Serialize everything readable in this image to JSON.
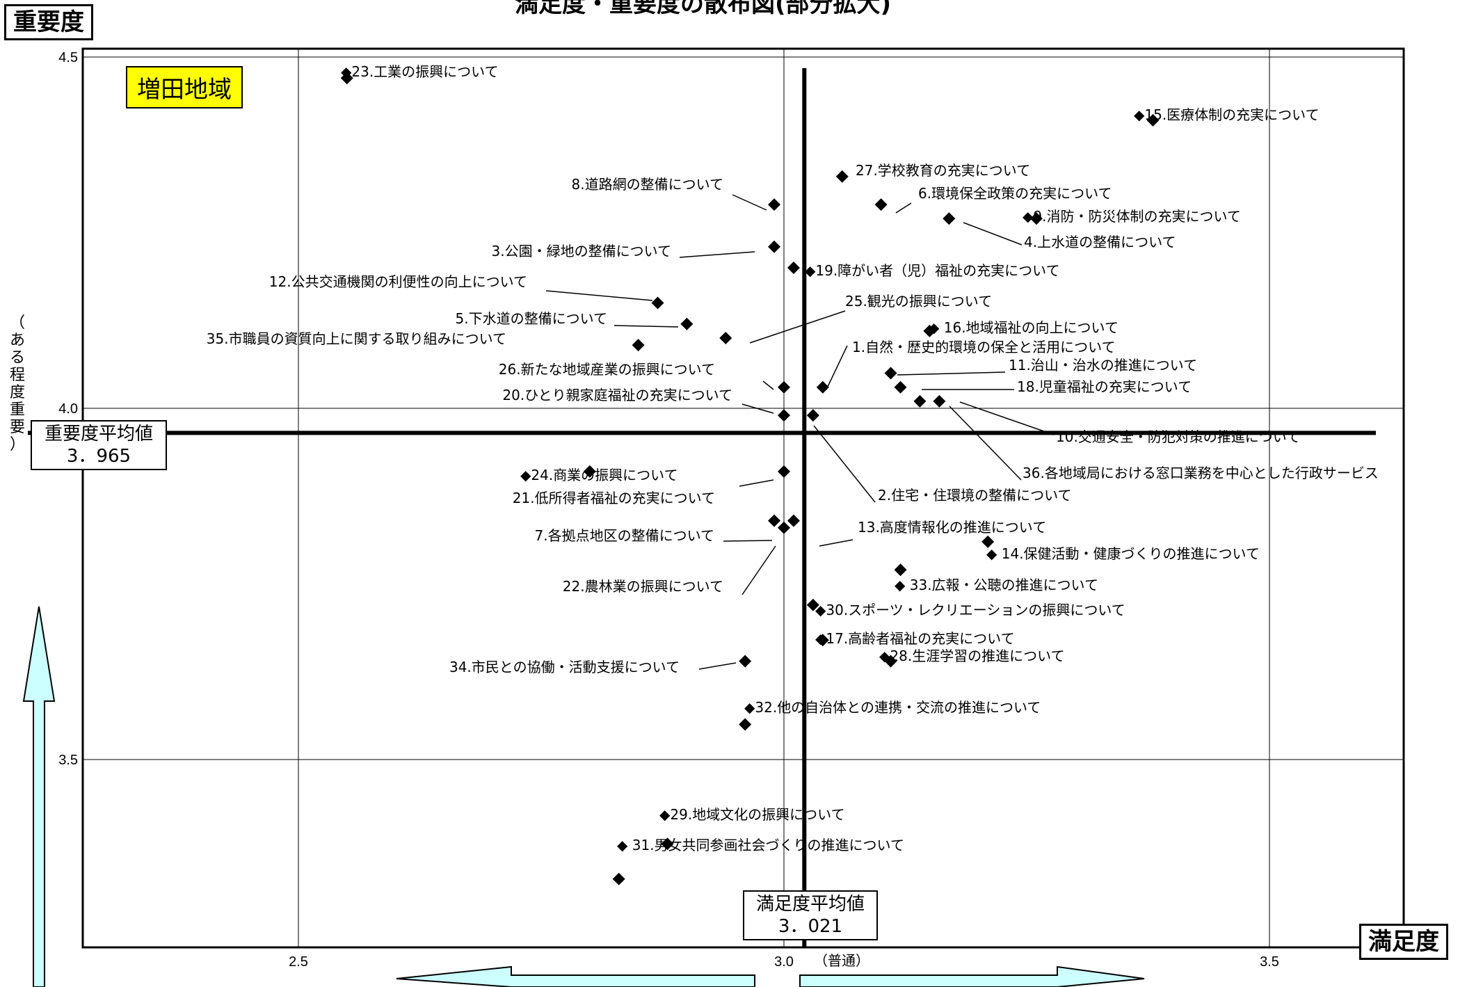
{
  "title": "満足度・重要度の散布図(部分拡大)",
  "region_label": "増田地域",
  "y_header": "重要度",
  "x_header": "満足度",
  "y_side_label": "（ある程度重要）",
  "x_normal_label": "（普通）",
  "avg_importance": {
    "label": "重要度平均値",
    "value": "3．965",
    "numeric": 3.965
  },
  "avg_satisfaction": {
    "label": "満足度平均値",
    "value": "3．021",
    "numeric": 3.021
  },
  "colors": {
    "arrow_fill": "#ccffff",
    "region_bg": "#ffff00",
    "marker": "#000000"
  },
  "chart_data": {
    "type": "scatter",
    "xlim": [
      2.28,
      3.64
    ],
    "ylim": [
      3.18,
      4.5
    ],
    "x_ticks": [
      "2.5",
      "3.0",
      "3.5"
    ],
    "y_ticks": [
      "4.5",
      "4.0",
      "3.5"
    ],
    "grid": true,
    "points": [
      {
        "label": "◆23.工業の振興について",
        "x": 2.55,
        "y": 4.47
      },
      {
        "label": "◆15.医療体制の充実について",
        "x": 3.38,
        "y": 4.41
      },
      {
        "label": "27.学校教育の充実について",
        "x": 3.06,
        "y": 4.33
      },
      {
        "label": "8.道路網の整備について",
        "x": 2.99,
        "y": 4.29
      },
      {
        "label": "6.環境保全政策の充実について",
        "x": 3.1,
        "y": 4.29
      },
      {
        "label": "◆9.消防・防災体制の充実について",
        "x": 3.26,
        "y": 4.27
      },
      {
        "label": "4.上水道の整備について",
        "x": 3.17,
        "y": 4.27
      },
      {
        "label": "3.公園・緑地の整備について",
        "x": 2.99,
        "y": 4.23
      },
      {
        "label": "◆19.障がい者（児）福祉の充実について",
        "x": 3.01,
        "y": 4.2
      },
      {
        "label": "12.公共交通機関の利便性の向上について",
        "x": 2.87,
        "y": 4.15
      },
      {
        "label": "25.観光の振興について",
        "x": 2.94,
        "y": 4.1
      },
      {
        "label": "5.下水道の整備について",
        "x": 2.9,
        "y": 4.12
      },
      {
        "label": "◆ 16.地域福祉の向上について",
        "x": 3.15,
        "y": 4.11
      },
      {
        "label": "35.市職員の資質向上に関する取り組みについて",
        "x": 2.85,
        "y": 4.09
      },
      {
        "label": "1.自然・歴史的環境の保全と活用について",
        "x": 3.04,
        "y": 4.03
      },
      {
        "label": "11.治山・治水の推進について",
        "x": 3.11,
        "y": 4.05
      },
      {
        "label": "26.新たな地域産業の振興について",
        "x": 3.0,
        "y": 4.03
      },
      {
        "label": "18.児童福祉の充実について",
        "x": 3.12,
        "y": 4.03
      },
      {
        "label": "20.ひとり親家庭福祉の充実について",
        "x": 3.0,
        "y": 3.99
      },
      {
        "label": "10.交通安全・防犯対策の推進について",
        "x": 3.16,
        "y": 4.01
      },
      {
        "label": "36.各地域局における窓口業務を中心とした行政サービス",
        "x": 3.14,
        "y": 4.01
      },
      {
        "label": "2.住宅・住環境の整備について",
        "x": 3.03,
        "y": 3.99
      },
      {
        "label": "◆24.商業の振興について",
        "x": 2.8,
        "y": 3.91
      },
      {
        "label": "21.低所得者福祉の充実について",
        "x": 3.0,
        "y": 3.91
      },
      {
        "label": "7.各拠点地区の整備について",
        "x": 2.99,
        "y": 3.84
      },
      {
        "label": "13.高度情報化の推進について",
        "x": 3.01,
        "y": 3.84
      },
      {
        "label": "22.農林業の振興について",
        "x": 3.0,
        "y": 3.83
      },
      {
        "label": "◆ 14.保健活動・健康づくりの推進について",
        "x": 3.21,
        "y": 3.81
      },
      {
        "label": "◆ 33.広報・公聴の推進について",
        "x": 3.12,
        "y": 3.77
      },
      {
        "label": "◆30.スポーツ・レクリエーションの振興について",
        "x": 3.03,
        "y": 3.72
      },
      {
        "label": "◆17.高齢者福祉の充実について",
        "x": 3.04,
        "y": 3.67
      },
      {
        "label": "◆28.生涯学習の推進について",
        "x": 3.11,
        "y": 3.64
      },
      {
        "label": "34.市民との協働・活動支援について",
        "x": 2.96,
        "y": 3.64
      },
      {
        "label": "◆32.他の自治体との連携・交流の推進について",
        "x": 2.96,
        "y": 3.55
      },
      {
        "label": "◆29.地域文化の振興について",
        "x": 2.88,
        "y": 3.38
      },
      {
        "label": "◆ 31.男女共同参画社会づくりの推進について",
        "x": 2.83,
        "y": 3.33
      }
    ]
  }
}
